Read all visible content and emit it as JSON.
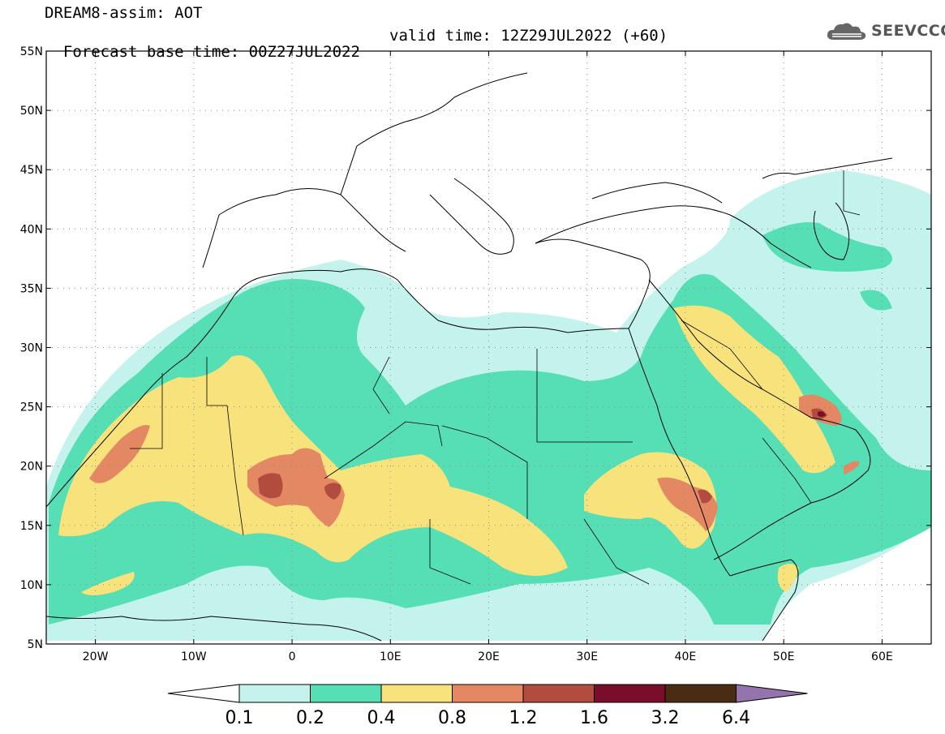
{
  "header": {
    "title_line1": "DREAM8-assim: AOT",
    "base_time": "Forecast base time: 00Z27JUL2022",
    "valid_time": "valid time: 12Z29JUL2022 (+60)",
    "logo_text": "SEEVCCC"
  },
  "map": {
    "lon_range": [
      -25,
      65
    ],
    "lat_range": [
      5,
      55
    ],
    "lat_labels": [
      "5N",
      "10N",
      "15N",
      "20N",
      "25N",
      "30N",
      "35N",
      "40N",
      "45N",
      "50N",
      "55N"
    ],
    "lat_values": [
      5,
      10,
      15,
      20,
      25,
      30,
      35,
      40,
      45,
      50,
      55
    ],
    "lon_labels": [
      "20W",
      "10W",
      "0",
      "10E",
      "20E",
      "30E",
      "40E",
      "50E",
      "60E"
    ],
    "lon_values": [
      -20,
      -10,
      0,
      10,
      20,
      30,
      40,
      50,
      60
    ],
    "grid": true
  },
  "colorbar": {
    "levels": [
      "0.1",
      "0.2",
      "0.4",
      "0.8",
      "1.2",
      "1.6",
      "3.2",
      "6.4"
    ],
    "colors": [
      "#c4f2ec",
      "#56deb4",
      "#f7e27c",
      "#e48864",
      "#b24c3e",
      "#7a0e28",
      "#4a2b14",
      "#9574ad"
    ],
    "extend_low_color": "#ffffff"
  }
}
